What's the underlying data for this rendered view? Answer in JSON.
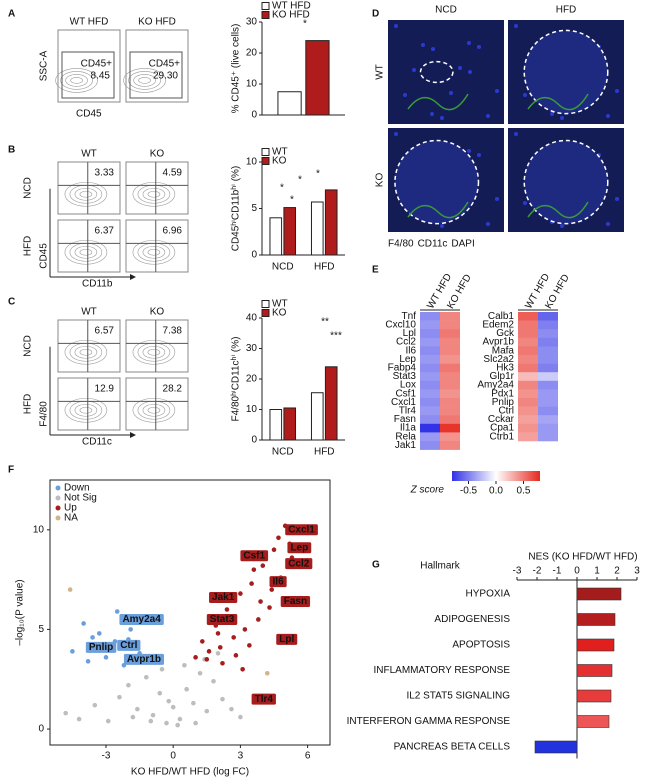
{
  "panel_labels": [
    "A",
    "B",
    "C",
    "D",
    "E",
    "F",
    "G"
  ],
  "flow_panels": [
    {
      "columns": [
        "WT HFD",
        "KO HFD"
      ],
      "rows": [],
      "gate_label": "CD45+",
      "values": [
        [
          "8.45",
          "29.30"
        ]
      ],
      "xlabel": "CD45",
      "ylabel": "SSC-A"
    },
    {
      "columns": [
        "WT",
        "KO"
      ],
      "rows": [
        "NCD",
        "HFD"
      ],
      "values": [
        [
          "3.33",
          "4.59"
        ],
        [
          "6.37",
          "6.96"
        ]
      ],
      "xlabel": "CD11b",
      "ylabel": "CD45"
    },
    {
      "columns": [
        "WT",
        "KO"
      ],
      "rows": [
        "NCD",
        "HFD"
      ],
      "values": [
        [
          "6.57",
          "7.38"
        ],
        [
          "12.9",
          "28.2"
        ]
      ],
      "xlabel": "CD11c",
      "ylabel": "F4/80"
    }
  ],
  "micrographs": {
    "columns": [
      "NCD",
      "HFD"
    ],
    "rows": [
      "WT",
      "KO"
    ],
    "legend": [
      {
        "text": "F4/80",
        "color": "#3a9a3a"
      },
      {
        "text": "CD11c",
        "color": "#d02020"
      },
      {
        "text": "DAPI",
        "color": "#2a3ad0"
      }
    ]
  },
  "chart_data": [
    {
      "type": "bar",
      "ylabel": "% CD45⁺ (live cells)",
      "categories": [
        null
      ],
      "series": [
        {
          "name": "WT HFD",
          "color": "#ffffff",
          "values": [
            7.5
          ]
        },
        {
          "name": "KO HFD",
          "color": "#b01c1c",
          "values": [
            24
          ]
        }
      ],
      "ylim": [
        0,
        30
      ],
      "yticks": [
        0,
        10,
        20,
        30
      ],
      "annotations": [
        "*"
      ]
    },
    {
      "type": "bar",
      "ylabel": "CD45ʰⁱCD11bʰⁱ (%)",
      "categories": [
        "NCD",
        "HFD"
      ],
      "series": [
        {
          "name": "WT",
          "color": "#ffffff",
          "values": [
            4.0,
            5.7
          ]
        },
        {
          "name": "KO",
          "color": "#b01c1c",
          "values": [
            5.1,
            7.0
          ]
        }
      ],
      "ylim": [
        0,
        10
      ],
      "yticks": [
        0,
        5,
        10
      ],
      "annotations": [
        "*",
        "*",
        "*",
        "*"
      ]
    },
    {
      "type": "bar",
      "ylabel": "F4/80ʰⁱCD11cʰⁱ (%)",
      "categories": [
        "NCD",
        "HFD"
      ],
      "series": [
        {
          "name": "WT",
          "color": "#ffffff",
          "values": [
            10,
            15.5
          ]
        },
        {
          "name": "KO",
          "color": "#b01c1c",
          "values": [
            10.5,
            24
          ]
        }
      ],
      "ylim": [
        0,
        40
      ],
      "yticks": [
        0,
        10,
        20,
        30,
        40
      ],
      "annotations": [
        "**",
        "***"
      ]
    },
    {
      "type": "heatmap",
      "columns": [
        "WT HFD",
        "KO HFD"
      ],
      "blocks": [
        {
          "rows": [
            "Tnf",
            "Cxcl10",
            "Lpl",
            "Ccl2",
            "Il6",
            "Lep",
            "Fabp4",
            "Stat3",
            "Lox",
            "Csf1",
            "Cxcl1",
            "Tlr4",
            "Fasn",
            "Il1a",
            "Rela",
            "Jak1"
          ],
          "values": [
            [
              -0.45,
              0.45
            ],
            [
              -0.4,
              0.45
            ],
            [
              -0.45,
              0.5
            ],
            [
              -0.4,
              0.45
            ],
            [
              -0.45,
              0.45
            ],
            [
              -0.4,
              0.4
            ],
            [
              -0.45,
              0.5
            ],
            [
              -0.4,
              0.45
            ],
            [
              -0.45,
              0.45
            ],
            [
              -0.4,
              0.4
            ],
            [
              -0.45,
              0.45
            ],
            [
              -0.4,
              0.45
            ],
            [
              -0.45,
              0.5
            ],
            [
              -0.8,
              0.75
            ],
            [
              -0.4,
              0.4
            ],
            [
              -0.45,
              0.45
            ]
          ]
        },
        {
          "rows": [
            "Calb1",
            "Edem2",
            "Gck",
            "Avpr1b",
            "Mafa",
            "Slc2a2",
            "Hk3",
            "Glp1r",
            "Amy2a4",
            "Pdx1",
            "Pnlip",
            "Ctrl",
            "Cckar",
            "Cpa1",
            "Ctrb1"
          ],
          "values": [
            [
              0.6,
              -0.6
            ],
            [
              0.5,
              -0.5
            ],
            [
              0.5,
              -0.45
            ],
            [
              0.45,
              -0.5
            ],
            [
              0.5,
              -0.45
            ],
            [
              0.45,
              -0.45
            ],
            [
              0.5,
              -0.5
            ],
            [
              0.25,
              -0.2
            ],
            [
              0.45,
              -0.45
            ],
            [
              0.4,
              -0.4
            ],
            [
              0.45,
              -0.4
            ],
            [
              0.4,
              -0.45
            ],
            [
              0.35,
              -0.35
            ],
            [
              0.4,
              -0.4
            ],
            [
              0.35,
              -0.4
            ]
          ]
        }
      ],
      "colorbar": {
        "label": "Z score",
        "lim": [
          -0.8,
          0.8
        ],
        "ticks": [
          -0.5,
          {
            "value": 0,
            "label": "0.0"
          },
          0.5
        ]
      }
    },
    {
      "type": "scatter",
      "xlabel": "KO HFD/WT HFD (log FC)",
      "ylabel": "–log₁₀(P value)",
      "xlim": [
        -5.5,
        7
      ],
      "ylim": [
        -0.8,
        12.5
      ],
      "xticks": [
        -3,
        0,
        3,
        6
      ],
      "yticks": [
        0,
        5,
        10
      ],
      "series": [
        {
          "name": "Down",
          "color": "#6a9fdc",
          "x": [
            -4.5,
            -4.0,
            -3.8,
            -3.3,
            -3.0,
            -2.8,
            -2.5,
            -2.2,
            -2.0,
            -1.8,
            -1.5,
            -1.3,
            -3.6,
            -2.6,
            -1.9
          ],
          "y": [
            3.9,
            5.3,
            3.4,
            4.8,
            3.6,
            4.1,
            5.9,
            3.2,
            4.5,
            3.6,
            3.8,
            3.4,
            4.6,
            4.4,
            5.0
          ]
        },
        {
          "name": "Not Sig",
          "color": "#bdbdbd",
          "x": [
            -4.8,
            -4.2,
            -3.5,
            -2.9,
            -2.4,
            -2.0,
            -1.6,
            -1.2,
            -0.9,
            -0.6,
            -0.3,
            0,
            0.3,
            0.6,
            0.9,
            1.2,
            1.5,
            1.8,
            2.2,
            2.6,
            3.0,
            -1.0,
            -0.5,
            0.5,
            1.0,
            -1.8,
            1.4,
            0.2,
            -0.2,
            2.0
          ],
          "y": [
            0.8,
            0.5,
            1.2,
            0.4,
            1.6,
            2.2,
            1.0,
            2.6,
            0.7,
            1.8,
            0.3,
            1.1,
            0.5,
            2.0,
            1.3,
            2.8,
            0.9,
            2.4,
            1.5,
            1.0,
            0.6,
            0.4,
            3.0,
            3.2,
            0.3,
            0.6,
            3.5,
            0.2,
            1.4,
            3.8
          ]
        },
        {
          "name": "Up",
          "color": "#a61d1d",
          "x": [
            1.0,
            1.3,
            1.6,
            1.9,
            2.1,
            2.4,
            2.7,
            3.0,
            3.2,
            3.5,
            3.8,
            4.0,
            4.3,
            4.5,
            4.8,
            5.0,
            5.3,
            2.2,
            2.8,
            3.4,
            3.9,
            4.4,
            1.5,
            2.5,
            3.6,
            4.1,
            4.7,
            5.2,
            3.1,
            2.0
          ],
          "y": [
            3.6,
            4.4,
            3.9,
            5.2,
            4.1,
            6.0,
            4.6,
            6.8,
            5.0,
            7.3,
            5.5,
            8.2,
            6.1,
            9.0,
            7.6,
            10.2,
            8.6,
            3.3,
            3.7,
            4.2,
            6.4,
            7.0,
            3.5,
            5.6,
            8.0,
            8.8,
            9.6,
            9.3,
            3.0,
            4.8
          ]
        },
        {
          "name": "NA",
          "color": "#d2b48c",
          "x": [
            -4.6,
            4.2
          ],
          "y": [
            7.0,
            2.8
          ]
        }
      ],
      "labels": [
        {
          "text": "Cxcl1",
          "x": 5.0,
          "y": 10.0
        },
        {
          "text": "Lep",
          "x": 5.1,
          "y": 9.1
        },
        {
          "text": "Ccl2",
          "x": 5.0,
          "y": 8.3
        },
        {
          "text": "Csf1",
          "x": 3.0,
          "y": 8.7
        },
        {
          "text": "Il6",
          "x": 4.3,
          "y": 7.4
        },
        {
          "text": "Fasn",
          "x": 4.8,
          "y": 6.4
        },
        {
          "text": "Jak1",
          "x": 1.6,
          "y": 6.6
        },
        {
          "text": "Stat3",
          "x": 1.5,
          "y": 5.5
        },
        {
          "text": "Lpl",
          "x": 4.6,
          "y": 4.5
        },
        {
          "text": "Tlr4",
          "x": 3.5,
          "y": 1.5
        },
        {
          "text": "Amy2a4",
          "x": -2.4,
          "y": 5.5
        },
        {
          "text": "Ctrl",
          "x": -2.5,
          "y": 4.2
        },
        {
          "text": "Avpr1b",
          "x": -2.2,
          "y": 3.5
        },
        {
          "text": "Pnlip",
          "x": -3.9,
          "y": 4.1
        }
      ]
    },
    {
      "type": "hbar",
      "title": "NES (KO HFD/WT HFD)",
      "ylabel": "Hallmark",
      "categories": [
        "HYPOXIA",
        "ADIPOGENESIS",
        "APOPTOSIS",
        "INFLAMMATORY RESPONSE",
        "IL2 STAT5 SIGNALING",
        "INTERFERON GAMMA RESPONSE",
        "PANCREAS BETA CELLS"
      ],
      "values": [
        2.2,
        1.9,
        1.85,
        1.75,
        1.7,
        1.6,
        -2.1
      ],
      "colors": [
        "#a51c1c",
        "#b51e1e",
        "#e0201f",
        "#e43030",
        "#e63c3c",
        "#ec5656",
        "#2233dd"
      ],
      "xlim": [
        -3,
        3
      ],
      "xticks": [
        -3,
        -2,
        -1,
        0,
        1,
        2,
        3
      ]
    }
  ]
}
